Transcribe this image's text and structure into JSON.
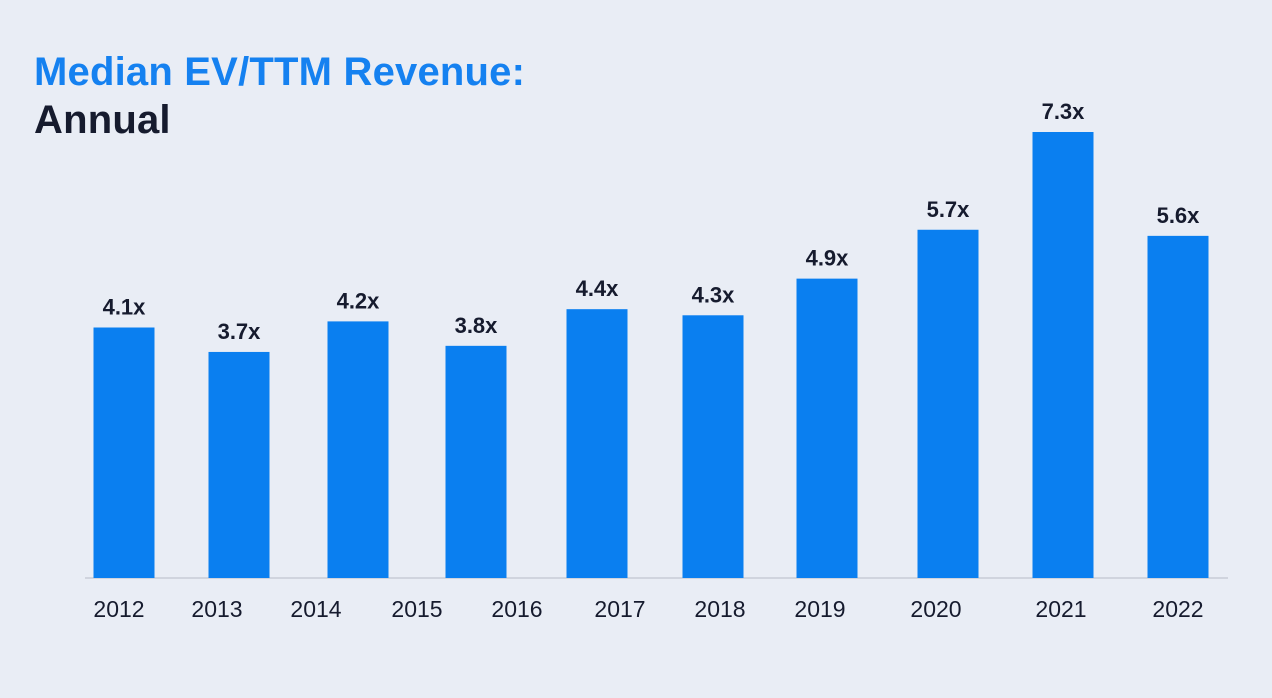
{
  "colors": {
    "background": "#e9edf5",
    "bar": "#0a7ff0",
    "title_accent": "#1581f0",
    "title_dark": "#161b2e",
    "baseline": "#c7ccd6"
  },
  "chart_data": {
    "type": "bar",
    "title": "Median EV/TTM Revenue:",
    "subtitle": "Annual",
    "categories": [
      "2012",
      "2013",
      "2014",
      "2015",
      "2016",
      "2017",
      "2018",
      "2019",
      "2020",
      "2021",
      "2022"
    ],
    "values": [
      4.1,
      3.7,
      4.2,
      3.8,
      4.4,
      4.3,
      4.9,
      5.7,
      7.3,
      5.6
    ],
    "labels": [
      "4.1x",
      "3.7x",
      "4.2x",
      "3.8x",
      "4.4x",
      "4.3x",
      "4.9x",
      "5.7x",
      "7.3x",
      "5.6x"
    ],
    "bar_categories": [
      "2012",
      "2013",
      "2014",
      "2015",
      "2017",
      "2018",
      "2019",
      "2020",
      "2021",
      "2022"
    ],
    "xlabel": "",
    "ylabel": "",
    "ylim": [
      0,
      7.3
    ],
    "grid": false,
    "legend": "none"
  }
}
